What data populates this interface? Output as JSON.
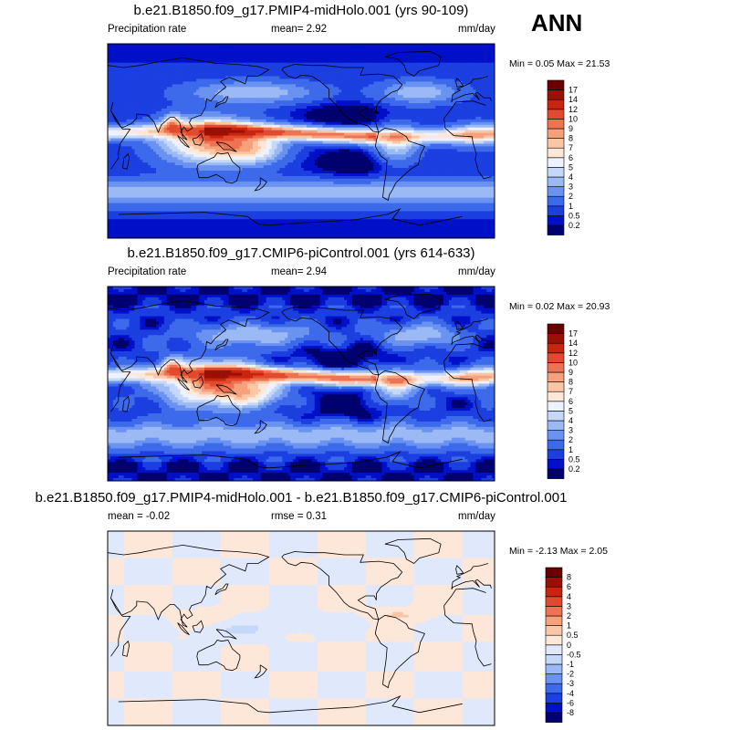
{
  "season": "ANN",
  "colors": {
    "abs": [
      "#00006e",
      "#0010c8",
      "#1b3fe0",
      "#3c6aeb",
      "#6a92f0",
      "#9bbaf5",
      "#c6d8fa",
      "#eef2fc",
      "#fde7d9",
      "#fbc6a5",
      "#f6a07c",
      "#ee7352",
      "#e34a2d",
      "#c8250f",
      "#9b1004",
      "#6a0000"
    ],
    "diff": [
      "#00006e",
      "#0010c8",
      "#1b3fe0",
      "#3c6aeb",
      "#6a92f0",
      "#9bbaf5",
      "#c6d8fa",
      "#dfe9fb",
      "#fde7d9",
      "#fbc6a5",
      "#f6a07c",
      "#ee7352",
      "#e34a2d",
      "#c8250f",
      "#9b1004",
      "#6a0000"
    ]
  },
  "panels": [
    {
      "title": "b.e21.B1850.f09_g17.PMIP4-midHolo.001 (yrs 90-109)",
      "left_text": "Precipitation rate",
      "mean_text": "mean=   2.92",
      "units": "mm/day",
      "minmax_text": "Min =   0.05 Max =  21.53",
      "levels": [
        "0.2",
        "0.5",
        "1",
        "2",
        "3",
        "4",
        "5",
        "6",
        "7",
        "8",
        "9",
        "10",
        "12",
        "14",
        "17"
      ],
      "kind": "abs"
    },
    {
      "title": "b.e21.B1850.f09_g17.CMIP6-piControl.001 (yrs 614-633)",
      "left_text": "Precipitation rate",
      "mean_text": "mean=   2.94",
      "units": "mm/day",
      "minmax_text": "Min =   0.02 Max =  20.93",
      "levels": [
        "0.2",
        "0.5",
        "1",
        "2",
        "3",
        "4",
        "5",
        "6",
        "7",
        "8",
        "9",
        "10",
        "12",
        "14",
        "17"
      ],
      "kind": "abs"
    },
    {
      "title": "b.e21.B1850.f09_g17.PMIP4-midHolo.001 - b.e21.B1850.f09_g17.CMIP6-piControl.001",
      "left_text": "mean =   -0.02",
      "mean_text": "rmse =    0.31",
      "units": "mm/day",
      "minmax_text": "Min =  -2.13 Max =   2.05",
      "levels": [
        "-8",
        "-6",
        "-4",
        "-3",
        "-2",
        "-1",
        "-0.5",
        "0",
        "0.5",
        "1",
        "2",
        "3",
        "4",
        "6",
        "8"
      ],
      "kind": "diff"
    }
  ]
}
